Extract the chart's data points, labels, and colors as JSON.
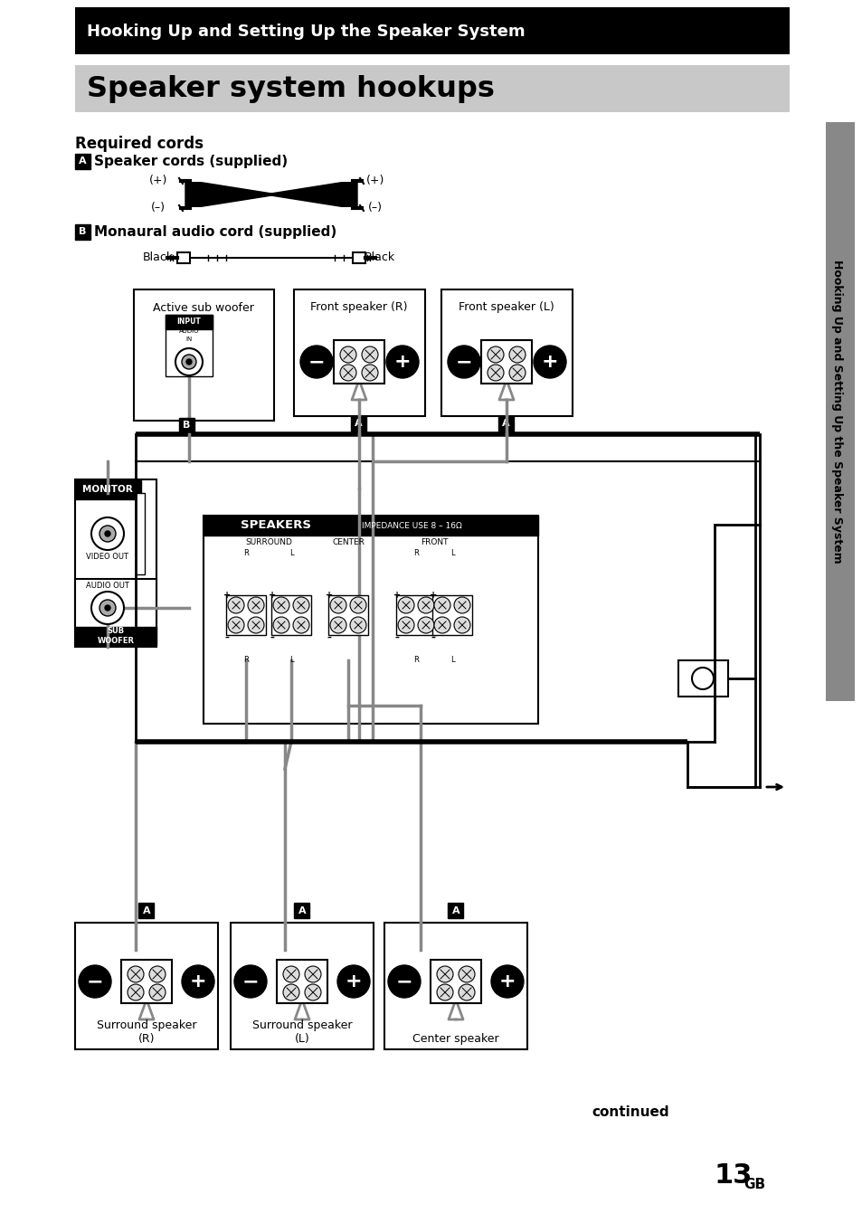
{
  "page_bg": "#ffffff",
  "header_bg": "#000000",
  "header_text": "Hooking Up and Setting Up the Speaker System",
  "header_text_color": "#ffffff",
  "title_bg": "#c8c8c8",
  "title_text": "Speaker system hookups",
  "title_text_color": "#000000",
  "section_label": "Required cords",
  "cord_a_label": "Speaker cords (supplied)",
  "cord_b_label": "Monaural audio cord (supplied)",
  "sidebar_text": "Hooking Up and Setting Up the Speaker System",
  "sidebar_bg": "#888888",
  "continued_text": "continued",
  "page_num": "13",
  "page_suffix": "GB",
  "speaker_labels_top": [
    "Active sub woofer",
    "Front speaker (R)",
    "Front speaker (L)"
  ],
  "speaker_labels_bottom": [
    "Surround speaker\n(R)",
    "Surround speaker\n(L)",
    "Center speaker"
  ],
  "main_unit_label": "SPEAKERS",
  "main_unit_sublabel": "IMPEDANCE USE 8 – 16Ω",
  "wire_color": "#888888",
  "wire_lw": 2.5
}
